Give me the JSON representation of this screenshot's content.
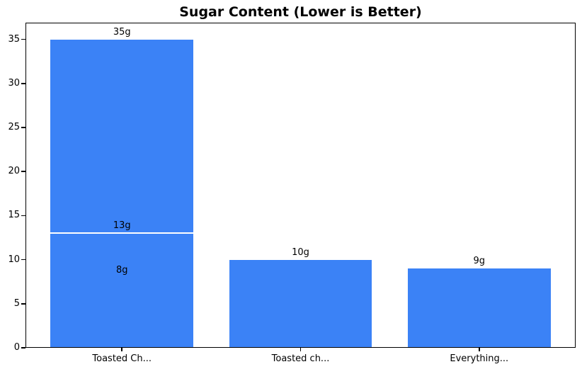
{
  "chart_data": {
    "type": "bar",
    "title": "Sugar Content (Lower is Better)",
    "xlabel": "",
    "ylabel": "",
    "ylim": [
      0,
      36.9
    ],
    "yticks": [
      0,
      5,
      10,
      15,
      20,
      25,
      30,
      35
    ],
    "grid": false,
    "legend_position": "none",
    "bar_color": "#3b82f6",
    "separator_color": "#ffffff",
    "axis_color": "#000000",
    "text_color": "#000000",
    "background_color": "#ffffff",
    "categories": [
      "Toasted Ch...",
      "Toasted ch...",
      "Everything..."
    ],
    "groups": [
      {
        "category": "Toasted Ch...",
        "bars": [
          {
            "value": 35,
            "label": "35g",
            "separator": false
          },
          {
            "value": 13,
            "label": "13g",
            "separator": true
          },
          {
            "value": 8,
            "label": "8g",
            "separator": false
          }
        ]
      },
      {
        "category": "Toasted ch...",
        "bars": [
          {
            "value": 10,
            "label": "10g",
            "separator": false
          }
        ]
      },
      {
        "category": "Everything...",
        "bars": [
          {
            "value": 9,
            "label": "9g",
            "separator": false
          }
        ]
      }
    ]
  }
}
